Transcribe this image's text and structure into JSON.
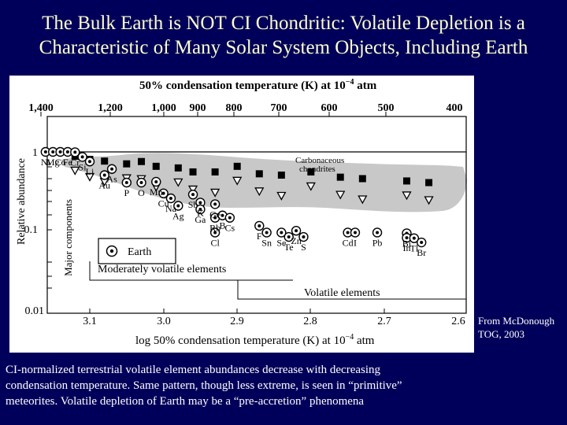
{
  "slide": {
    "title_line1": "The Bulk Earth is NOT CI Chondritic: Volatile Depletion is a",
    "title_line2": "Characteristic of Many Solar System Objects, Including Earth",
    "credit_line1": "From McDonough",
    "credit_line2": "TOG, 2003",
    "caption_line1": "CI-normalized terrestrial volatile element abundances decrease with decreasing",
    "caption_line2": "condensation temperature.  Same pattern, though less extreme, is seen in “primitive”",
    "caption_line3": "meteorites.  Volatile depletion of Earth may be a “pre-accretion” phenomena"
  },
  "figure": {
    "top_title": "50% condensation temperature (K) at 10",
    "top_title_exp": "−4",
    "top_title_unit": " atm",
    "top_ticks": [
      "1,400",
      "1,200",
      "1,000",
      "900",
      "800",
      "700",
      "600",
      "500",
      "400"
    ],
    "y_label": "Relative abundance",
    "y_ticks": [
      "1",
      "0.1",
      "0.01"
    ],
    "bottom_title": "log 50% condensation temperature (K) at 10",
    "bottom_title_exp": "−4",
    "bottom_title_unit": " atm",
    "bottom_ticks": [
      "3.1",
      "3.0",
      "2.9",
      "2.8",
      "2.7",
      "2.6"
    ],
    "major_components": "Major components",
    "moderately_volatile": "Moderately volatile elements",
    "volatile": "Volatile elements",
    "carbonaceous_1": "Carbonaceous",
    "carbonaceous_2": "chondrites",
    "legend_earth": "Earth",
    "colors": {
      "band": "#c8c8c8",
      "marks": "#000000"
    }
  },
  "chart_data": {
    "type": "scatter",
    "x_axis": "log 50% condensation temperature (K) at 10^-4 atm",
    "x_top_axis": "50% condensation temperature (K) at 10^-4 atm",
    "y_axis": "Relative abundance",
    "xlim": [
      3.17,
      2.6
    ],
    "ylim": [
      0.01,
      1.6
    ],
    "y_scale": "log",
    "series": [
      {
        "name": "Earth",
        "points": [
          {
            "label": "Ni",
            "x": 3.16,
            "y": 1.0
          },
          {
            "label": "Mg",
            "x": 3.15,
            "y": 1.0
          },
          {
            "label": "Co",
            "x": 3.14,
            "y": 1.0
          },
          {
            "label": "Fe",
            "x": 3.13,
            "y": 1.0
          },
          {
            "label": "Cr",
            "x": 3.12,
            "y": 0.99
          },
          {
            "label": "Si",
            "x": 3.11,
            "y": 0.86
          },
          {
            "label": "Li",
            "x": 3.1,
            "y": 0.75
          },
          {
            "label": "As",
            "x": 3.07,
            "y": 0.6
          },
          {
            "label": "Au",
            "x": 3.08,
            "y": 0.5
          },
          {
            "label": "P",
            "x": 3.05,
            "y": 0.4
          },
          {
            "label": "O",
            "x": 3.03,
            "y": 0.4
          },
          {
            "label": "Mn",
            "x": 3.01,
            "y": 0.41
          },
          {
            "label": "Cu",
            "x": 3.0,
            "y": 0.29
          },
          {
            "label": "Na",
            "x": 2.99,
            "y": 0.25
          },
          {
            "label": "Ag",
            "x": 2.98,
            "y": 0.2
          },
          {
            "label": "Sb",
            "x": 2.96,
            "y": 0.28
          },
          {
            "label": "K",
            "x": 2.95,
            "y": 0.22
          },
          {
            "label": "Ga",
            "x": 2.95,
            "y": 0.18
          },
          {
            "label": "Rb",
            "x": 2.93,
            "y": 0.14
          },
          {
            "label": "Ge",
            "x": 2.93,
            "y": 0.21
          },
          {
            "label": "B",
            "x": 2.92,
            "y": 0.15
          },
          {
            "label": "Cs",
            "x": 2.91,
            "y": 0.14
          },
          {
            "label": "Cl",
            "x": 2.93,
            "y": 0.09
          },
          {
            "label": "F",
            "x": 2.87,
            "y": 0.11
          },
          {
            "label": "Sn",
            "x": 2.86,
            "y": 0.09
          },
          {
            "label": "Se",
            "x": 2.84,
            "y": 0.09
          },
          {
            "label": "Zn",
            "x": 2.82,
            "y": 0.095
          },
          {
            "label": "Te",
            "x": 2.83,
            "y": 0.079
          },
          {
            "label": "S",
            "x": 2.81,
            "y": 0.079
          },
          {
            "label": "Cd",
            "x": 2.75,
            "y": 0.09
          },
          {
            "label": "I",
            "x": 2.74,
            "y": 0.09
          },
          {
            "label": "Pb",
            "x": 2.71,
            "y": 0.09
          },
          {
            "label": "Bi",
            "x": 2.67,
            "y": 0.088
          },
          {
            "label": "In",
            "x": 2.67,
            "y": 0.077
          },
          {
            "label": "Tl",
            "x": 2.66,
            "y": 0.076
          },
          {
            "label": "Br",
            "x": 2.65,
            "y": 0.067
          }
        ]
      },
      {
        "name": "Carbonaceous chondrites",
        "note": "shaded grey band; filled squares and open triangles",
        "points": [
          {
            "x": 3.12,
            "y": 0.88
          },
          {
            "x": 3.1,
            "y": 0.8
          },
          {
            "x": 3.08,
            "y": 0.76
          },
          {
            "x": 3.05,
            "y": 0.7
          },
          {
            "x": 3.03,
            "y": 0.75
          },
          {
            "x": 3.01,
            "y": 0.65
          },
          {
            "x": 2.98,
            "y": 0.62
          },
          {
            "x": 2.96,
            "y": 0.55
          },
          {
            "x": 2.93,
            "y": 0.55
          },
          {
            "x": 2.9,
            "y": 0.65
          },
          {
            "x": 2.87,
            "y": 0.52
          },
          {
            "x": 2.84,
            "y": 0.5
          },
          {
            "x": 2.8,
            "y": 0.55
          },
          {
            "x": 2.76,
            "y": 0.47
          },
          {
            "x": 2.73,
            "y": 0.45
          },
          {
            "x": 2.67,
            "y": 0.42
          },
          {
            "x": 2.64,
            "y": 0.4
          }
        ]
      }
    ]
  }
}
